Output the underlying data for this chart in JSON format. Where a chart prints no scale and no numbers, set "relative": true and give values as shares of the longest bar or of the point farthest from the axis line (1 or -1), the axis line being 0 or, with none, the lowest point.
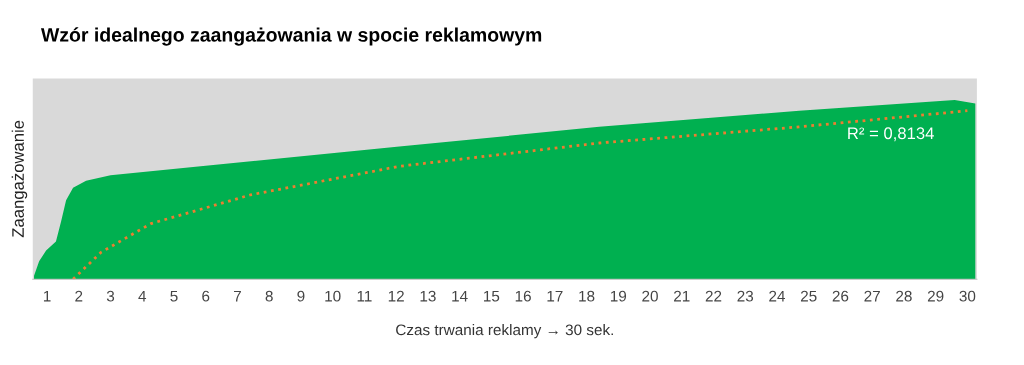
{
  "chart_data": {
    "type": "area",
    "title": "Wzór idealnego zaangażowania w spocie reklamowym",
    "xlabel": "Czas trwania reklamy → 30 sek.",
    "ylabel": "Zaangażowanie",
    "relative": true,
    "xlim": [
      0.55,
      30.3
    ],
    "xticks": [
      1,
      2,
      3,
      4,
      5,
      6,
      7,
      8,
      9,
      10,
      11,
      12,
      13,
      14,
      15,
      16,
      17,
      18,
      19,
      20,
      21,
      22,
      23,
      24,
      25,
      26,
      27,
      28,
      29,
      30
    ],
    "series": [
      {
        "color": "#00b050",
        "x": [
          0.59,
          0.75,
          0.97,
          1.28,
          1.44,
          1.6,
          1.82,
          2.23,
          3.0,
          5.84,
          12.1,
          18.4,
          24.7,
          28.8,
          29.6,
          30.25
        ],
        "values": [
          0.02,
          0.1,
          0.16,
          0.21,
          0.32,
          0.44,
          0.51,
          0.55,
          0.58,
          0.63,
          0.74,
          0.85,
          0.94,
          0.99,
          1.0,
          0.98
        ]
      },
      {
        "type": "line",
        "color": "#ed7d31",
        "line_style": "dotted",
        "x": [
          1.82,
          2.7,
          4.27,
          7.4,
          12.1,
          18.4,
          24.7,
          30.0
        ],
        "values": [
          0,
          0.15,
          0.31,
          0.47,
          0.63,
          0.76,
          0.85,
          0.94
        ]
      }
    ],
    "annotations": [
      "R² = 0,8134"
    ],
    "grid": false,
    "legend": false
  }
}
